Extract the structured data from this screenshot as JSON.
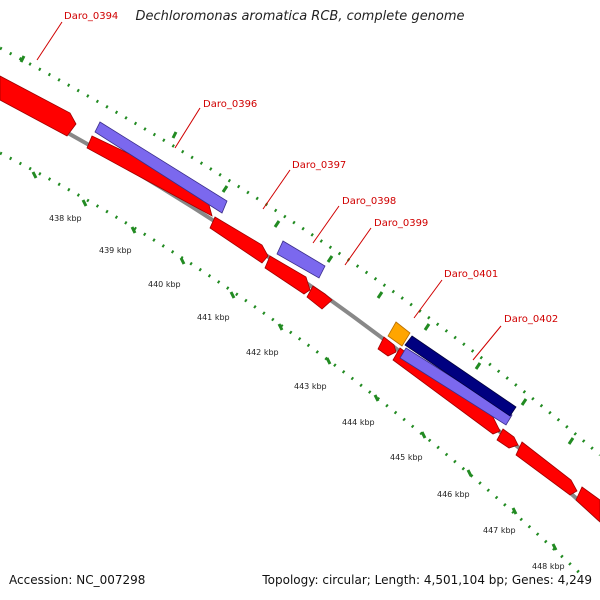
{
  "title": "Dechloromonas aromatica RCB, complete genome",
  "footer": {
    "accession": "Accession: NC_007298",
    "summary": "Topology: circular; Length: 4,501,104 bp; Genes: 4,249"
  },
  "colors": {
    "cds": "#ff0000",
    "cds_dark": "#a00000",
    "lavender": "#7b68ee",
    "navy": "#000080",
    "orange": "#ffa500",
    "backbone": "#888888",
    "tick": "#228b22",
    "label": "#d00000"
  },
  "gene_labels": [
    "Daro_0394",
    "Daro_0396",
    "Daro_0397",
    "Daro_0398",
    "Daro_0399",
    "Daro_0401",
    "Daro_0402"
  ],
  "kbp_labels": [
    "438 kbp",
    "439 kbp",
    "440 kbp",
    "441 kbp",
    "442 kbp",
    "443 kbp",
    "444 kbp",
    "445 kbp",
    "446 kbp",
    "447 kbp",
    "448 kbp"
  ]
}
